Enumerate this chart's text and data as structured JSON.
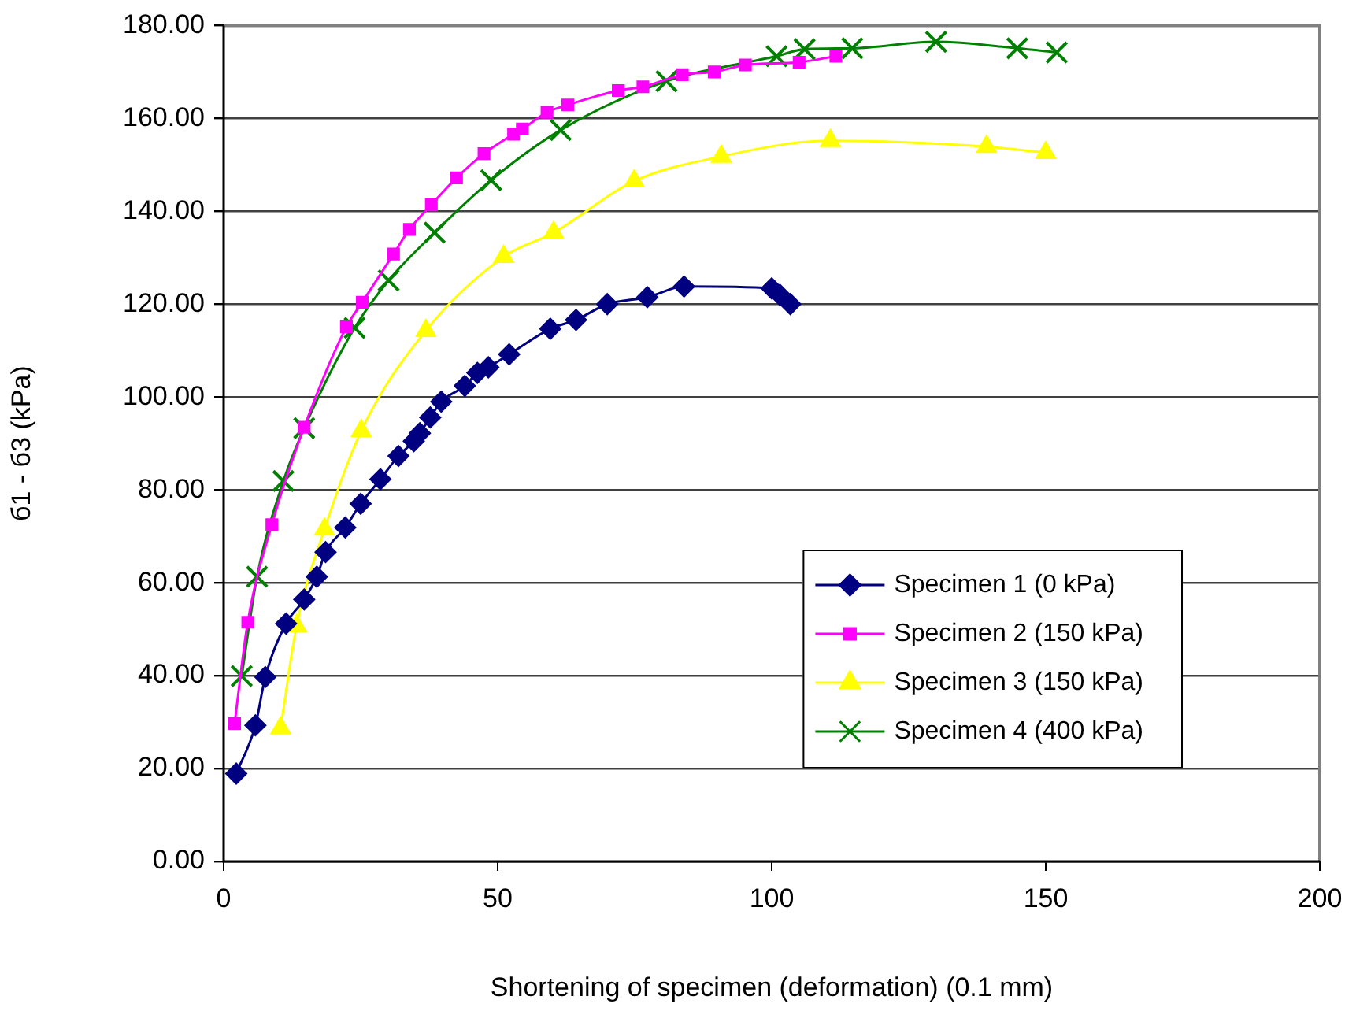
{
  "chart_data": {
    "type": "line",
    "xlabel": "Shortening of specimen (deformation) (0.1 mm)",
    "ylabel": "б1 - б3 (kPa)",
    "xlim": [
      0,
      200
    ],
    "xticks": [
      0,
      50,
      100,
      150,
      200
    ],
    "ylim": [
      0,
      180
    ],
    "yticks": [
      {
        "value": 0,
        "label": "0.00"
      },
      {
        "value": 20,
        "label": "20.00"
      },
      {
        "value": 40,
        "label": "40.00"
      },
      {
        "value": 60,
        "label": "60.00"
      },
      {
        "value": 80,
        "label": "80.00"
      },
      {
        "value": 100,
        "label": "100.00"
      },
      {
        "value": 120,
        "label": "120.00"
      },
      {
        "value": 140,
        "label": "140.00"
      },
      {
        "value": 160,
        "label": "160.00"
      },
      {
        "value": 180,
        "label": "180.00"
      }
    ],
    "grid": "y",
    "legend": "bottom right",
    "series": [
      {
        "name": "Specimen 1 (0 kPa)",
        "color": "#000080",
        "marker": "diamond",
        "x": [
          2.3,
          5.8,
          7.6,
          11.4,
          14.7,
          17,
          18.6,
          22.2,
          25,
          28.6,
          31.9,
          34.7,
          35.8,
          37.7,
          39.7,
          44,
          46.3,
          48.3,
          52.1,
          59.6,
          64.3,
          70,
          77.3,
          84,
          100,
          101.5,
          103.4
        ],
        "values": [
          18.9,
          29.3,
          39.7,
          51.2,
          56.4,
          61.3,
          66.6,
          71.9,
          77,
          82.3,
          87.3,
          90.5,
          92.2,
          95.6,
          99,
          102.4,
          105.2,
          106.4,
          109.2,
          114.7,
          116.6,
          120,
          121.5,
          123.8,
          123.4,
          122,
          120
        ]
      },
      {
        "name": "Specimen 2 (150 kPa)",
        "color": "#ff00ff",
        "marker": "square",
        "x": [
          2,
          4.4,
          8.8,
          14.7,
          22.4,
          25.3,
          31,
          33.9,
          37.9,
          42.5,
          47.5,
          52.9,
          54.5,
          59,
          62.8,
          72,
          76.5,
          83.7,
          89.5,
          95.2,
          105,
          111.7
        ],
        "values": [
          29.7,
          51.5,
          72.5,
          93.5,
          115.1,
          120.4,
          130.8,
          136.1,
          141.4,
          147.2,
          152.4,
          156.6,
          157.7,
          161.3,
          162.9,
          166,
          166.8,
          169.4,
          170,
          171.5,
          172.1,
          173.4
        ]
      },
      {
        "name": "Specimen 3 (150 kPa)",
        "color": "#ffff00",
        "marker": "triangle",
        "x": [
          10.4,
          13.3,
          18.4,
          25.1,
          36.9,
          51.1,
          60.2,
          74.9,
          90.8,
          110.7,
          139.2,
          150
        ],
        "values": [
          28.7,
          50.7,
          71.5,
          92.7,
          114.3,
          130.2,
          135.4,
          146.5,
          151.8,
          155.2,
          153.9,
          152.6
        ]
      },
      {
        "name": "Specimen 4 (400 kPa)",
        "color": "#008000",
        "marker": "cross",
        "x": [
          3.3,
          6.1,
          10.9,
          14.7,
          23.9,
          30.1,
          38.5,
          48.8,
          61.5,
          80.8,
          100.9,
          106,
          114.7,
          130,
          144.8,
          152
        ],
        "values": [
          39.9,
          61.3,
          81.9,
          93.3,
          114.9,
          125.1,
          135.4,
          146.7,
          157.5,
          168,
          173.4,
          174.9,
          175.1,
          176.5,
          175.1,
          174.2
        ]
      }
    ]
  }
}
